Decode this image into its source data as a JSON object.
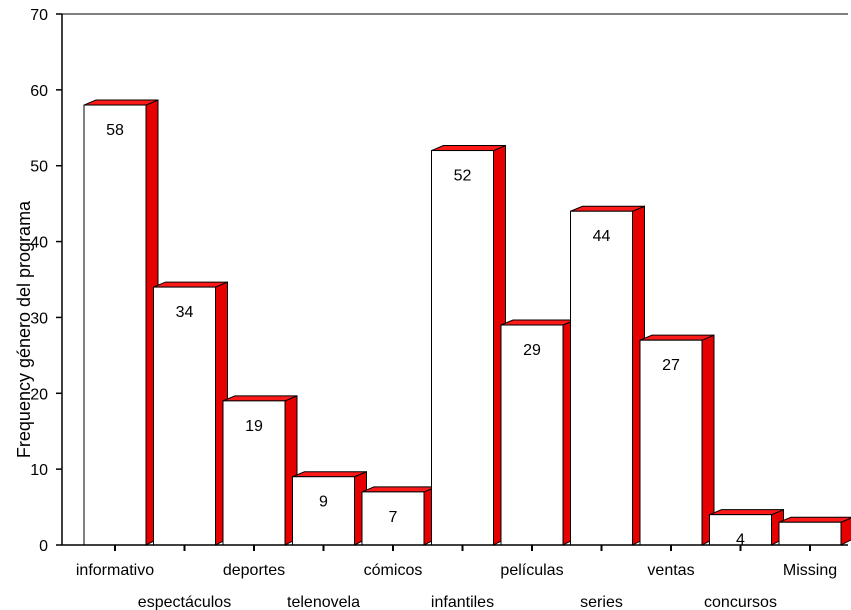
{
  "chart_data": {
    "type": "bar",
    "style": "3d",
    "ylabel": "Frequency género del programa",
    "ylim": [
      0,
      70
    ],
    "yticks": [
      0,
      10,
      20,
      30,
      40,
      50,
      60,
      70
    ],
    "grid": false,
    "categories": [
      "informativo",
      "espectáculos",
      "deportes",
      "telenovela",
      "cómicos",
      "infantiles",
      "películas",
      "series",
      "ventas",
      "concursos",
      "Missing"
    ],
    "values": [
      58,
      34,
      19,
      9,
      7,
      52,
      29,
      44,
      27,
      4,
      3
    ],
    "data_labels": [
      "58",
      "34",
      "19",
      "9",
      "7",
      "52",
      "29",
      "44",
      "27",
      "4",
      ""
    ],
    "colors": {
      "bar_front": "#ffffff",
      "bar_side": "#e60000",
      "bar_top": "#ff1a1a",
      "outline": "#000000"
    }
  }
}
